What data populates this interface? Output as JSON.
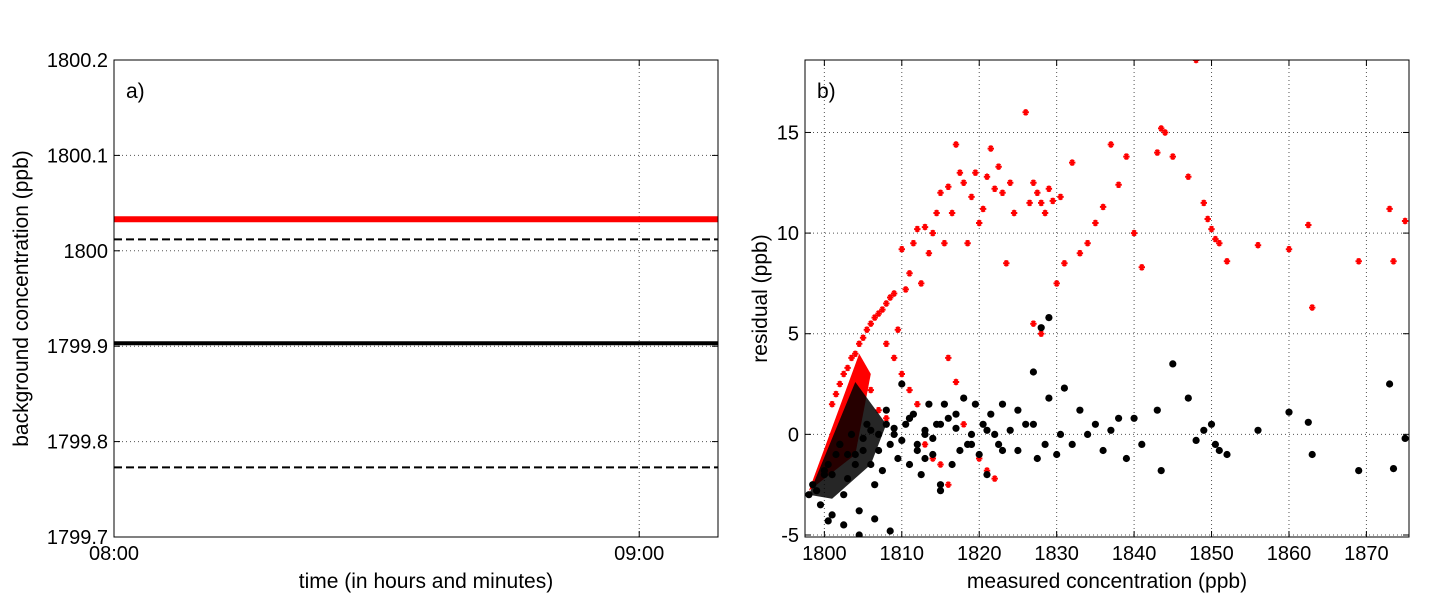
{
  "chart_data": [
    {
      "type": "line",
      "panel_label": "a)",
      "title": "",
      "xlabel": "time (in hours and minutes)",
      "ylabel": "background concentration (ppb)",
      "xlim": [
        "08:00",
        "09:09"
      ],
      "ylim": [
        1799.7,
        1800.2
      ],
      "x_ticks": [
        "08:00",
        "09:00"
      ],
      "y_ticks": [
        "1799.7",
        "1799.8",
        "1799.9",
        "1800",
        "1800.1",
        "1800.2"
      ],
      "grid": true,
      "x": [
        "08:00",
        "08:20",
        "08:40",
        "09:00",
        "09:09"
      ],
      "series": [
        {
          "color": "#ff0000",
          "style": "solid-thick",
          "values": [
            1800.033,
            1800.033,
            1800.033,
            1800.033,
            1800.033
          ]
        },
        {
          "color": "#000000",
          "style": "dashed",
          "values": [
            1800.012,
            1800.012,
            1800.012,
            1800.012,
            1800.012
          ]
        },
        {
          "color": "#000000",
          "style": "solid-thick",
          "values": [
            1799.903,
            1799.903,
            1799.903,
            1799.903,
            1799.903
          ]
        },
        {
          "color": "#000000",
          "style": "dashed",
          "values": [
            1799.773,
            1799.773,
            1799.773,
            1799.773,
            1799.773
          ]
        }
      ]
    },
    {
      "type": "scatter",
      "panel_label": "b)",
      "title": "",
      "xlabel": "measured concentration (ppb)",
      "ylabel": "residual (ppb)",
      "xlim": [
        1797.5,
        1875.5
      ],
      "ylim": [
        -5.1,
        18.6
      ],
      "x_ticks": [
        "1800",
        "1810",
        "1820",
        "1830",
        "1840",
        "1850",
        "1860",
        "1870"
      ],
      "y_ticks": [
        "-5",
        "0",
        "5",
        "10",
        "15"
      ],
      "grid": true,
      "series": [
        {
          "color": "#ff0000",
          "marker": "star",
          "x": [
            1801,
            1801.5,
            1802,
            1802.5,
            1803,
            1803.5,
            1804,
            1804.5,
            1805,
            1805.5,
            1806,
            1806.5,
            1807,
            1807.5,
            1808,
            1808.5,
            1809,
            1809.5,
            1810,
            1810.5,
            1811,
            1811.5,
            1812,
            1812.5,
            1813,
            1813.5,
            1814,
            1814.5,
            1815,
            1815.5,
            1816,
            1816.5,
            1817,
            1817.5,
            1818,
            1818.5,
            1819,
            1819.5,
            1820,
            1820.5,
            1821,
            1821.5,
            1822,
            1822.5,
            1823,
            1823.5,
            1824,
            1824.5,
            1826,
            1826.5,
            1827,
            1827.5,
            1828,
            1828.5,
            1829,
            1829.5,
            1830,
            1830.5,
            1831,
            1832,
            1833,
            1834,
            1835,
            1836,
            1837,
            1838,
            1839,
            1840,
            1841,
            1843,
            1843.5,
            1844,
            1845,
            1847,
            1848,
            1849,
            1849.5,
            1850,
            1850.5,
            1851,
            1852,
            1856,
            1860,
            1862.5,
            1863,
            1869,
            1873,
            1873.5,
            1875,
            1808,
            1809,
            1810,
            1811,
            1812,
            1813,
            1814,
            1815,
            1816,
            1816,
            1817,
            1818,
            1819,
            1820,
            1821,
            1822,
            1827,
            1828,
            1805,
            1806,
            1807,
            1808
          ],
          "y": [
            1.5,
            2.0,
            2.5,
            3.0,
            3.3,
            3.8,
            4.0,
            4.5,
            4.8,
            5.2,
            5.5,
            5.8,
            6.0,
            6.2,
            6.5,
            6.8,
            7.0,
            5.2,
            9.2,
            7.2,
            8.0,
            9.5,
            10.2,
            7.5,
            10.3,
            9.0,
            10.0,
            11.0,
            12.0,
            9.5,
            12.3,
            11.0,
            14.4,
            13.0,
            12.5,
            9.5,
            11.8,
            13.0,
            10.5,
            11.2,
            12.8,
            14.2,
            12.2,
            13.3,
            12.0,
            8.5,
            12.5,
            11.0,
            16.0,
            11.5,
            12.5,
            12.0,
            11.5,
            11.0,
            12.2,
            11.6,
            7.5,
            11.8,
            8.5,
            13.5,
            9.0,
            9.5,
            10.5,
            11.3,
            14.4,
            12.4,
            13.8,
            10.0,
            8.3,
            14.0,
            15.2,
            15.0,
            13.8,
            12.8,
            18.6,
            11.5,
            10.7,
            10.2,
            9.7,
            9.5,
            8.6,
            9.4,
            9.2,
            10.4,
            6.3,
            8.6,
            11.2,
            8.6,
            10.6,
            4.5,
            3.8,
            3.0,
            2.2,
            1.5,
            -0.5,
            -1.2,
            -1.5,
            -2.5,
            3.8,
            2.6,
            0.5,
            -0.5,
            -1.2,
            -1.8,
            -2.2,
            5.5,
            5.0,
            3.2,
            2.2,
            1.2,
            0.8
          ]
        },
        {
          "color": "#000000",
          "marker": "dot",
          "x": [
            1798,
            1798.5,
            1799,
            1799.5,
            1800,
            1800.5,
            1801,
            1801.5,
            1802,
            1802.5,
            1803,
            1803.5,
            1804,
            1804.5,
            1805,
            1805.5,
            1806,
            1806.5,
            1807,
            1807.5,
            1808,
            1808.5,
            1809,
            1809.5,
            1810,
            1810.5,
            1811,
            1811.5,
            1812,
            1812.5,
            1813,
            1813.5,
            1814,
            1814.5,
            1815,
            1815.5,
            1816,
            1816.5,
            1817,
            1817.5,
            1818,
            1818.5,
            1819,
            1819.5,
            1820,
            1820.5,
            1821,
            1821.5,
            1822,
            1822.5,
            1823,
            1824,
            1825,
            1826,
            1827,
            1827.5,
            1828,
            1828.5,
            1829,
            1830,
            1830.5,
            1831,
            1832,
            1833,
            1834,
            1835,
            1836,
            1837,
            1838,
            1839,
            1840,
            1841,
            1843,
            1843.5,
            1845,
            1847,
            1848,
            1849,
            1850,
            1850.5,
            1851,
            1852,
            1856,
            1860,
            1862.5,
            1863,
            1869,
            1873,
            1873.5,
            1875,
            1800,
            1801,
            1802,
            1803,
            1804,
            1805,
            1806,
            1807,
            1808,
            1809,
            1810,
            1811,
            1812,
            1813,
            1814,
            1815,
            1800.5,
            1802.5,
            1804.5,
            1806.5,
            1808.5,
            1811,
            1813,
            1815,
            1817,
            1819,
            1821,
            1823,
            1825,
            1827,
            1829
          ],
          "y": [
            -3.0,
            -2.5,
            -2.8,
            -3.5,
            -2.0,
            -1.5,
            -4.0,
            -1.0,
            -0.5,
            -3.0,
            -2.2,
            0.0,
            -1.0,
            -5.0,
            -0.8,
            0.5,
            -1.5,
            -2.5,
            0.0,
            -1.8,
            1.2,
            -0.5,
            0.3,
            -1.2,
            2.5,
            0.5,
            -1.5,
            1.0,
            -0.8,
            -2.0,
            0.0,
            1.5,
            -1.0,
            0.5,
            -2.5,
            1.5,
            0.8,
            -1.5,
            0.3,
            -0.8,
            1.8,
            -0.5,
            0.0,
            1.5,
            -1.0,
            0.5,
            -2.0,
            1.0,
            0.0,
            -0.5,
            1.5,
            0.2,
            -0.8,
            0.5,
            3.1,
            -1.2,
            5.3,
            -0.5,
            5.8,
            -1.0,
            0.0,
            2.3,
            -0.5,
            1.2,
            0.0,
            0.5,
            -0.8,
            0.2,
            0.8,
            -1.2,
            0.8,
            -0.5,
            1.2,
            -1.8,
            3.5,
            1.8,
            -0.3,
            0.2,
            0.5,
            -0.5,
            -0.8,
            -1.0,
            0.2,
            1.1,
            0.6,
            -1.0,
            -1.8,
            2.5,
            -1.7,
            -0.2,
            -1.8,
            -2.0,
            -0.5,
            -1.0,
            -1.5,
            -0.2,
            0.2,
            -0.8,
            0.5,
            0.0,
            -0.3,
            0.8,
            -0.5,
            0.2,
            -0.2,
            0.5,
            -4.3,
            -4.5,
            -3.8,
            -4.2,
            -4.8,
            0.8,
            -1.2,
            -2.8,
            1.0,
            -0.5,
            0.2,
            -0.8,
            1.2,
            0.5,
            1.8
          ]
        }
      ]
    }
  ]
}
